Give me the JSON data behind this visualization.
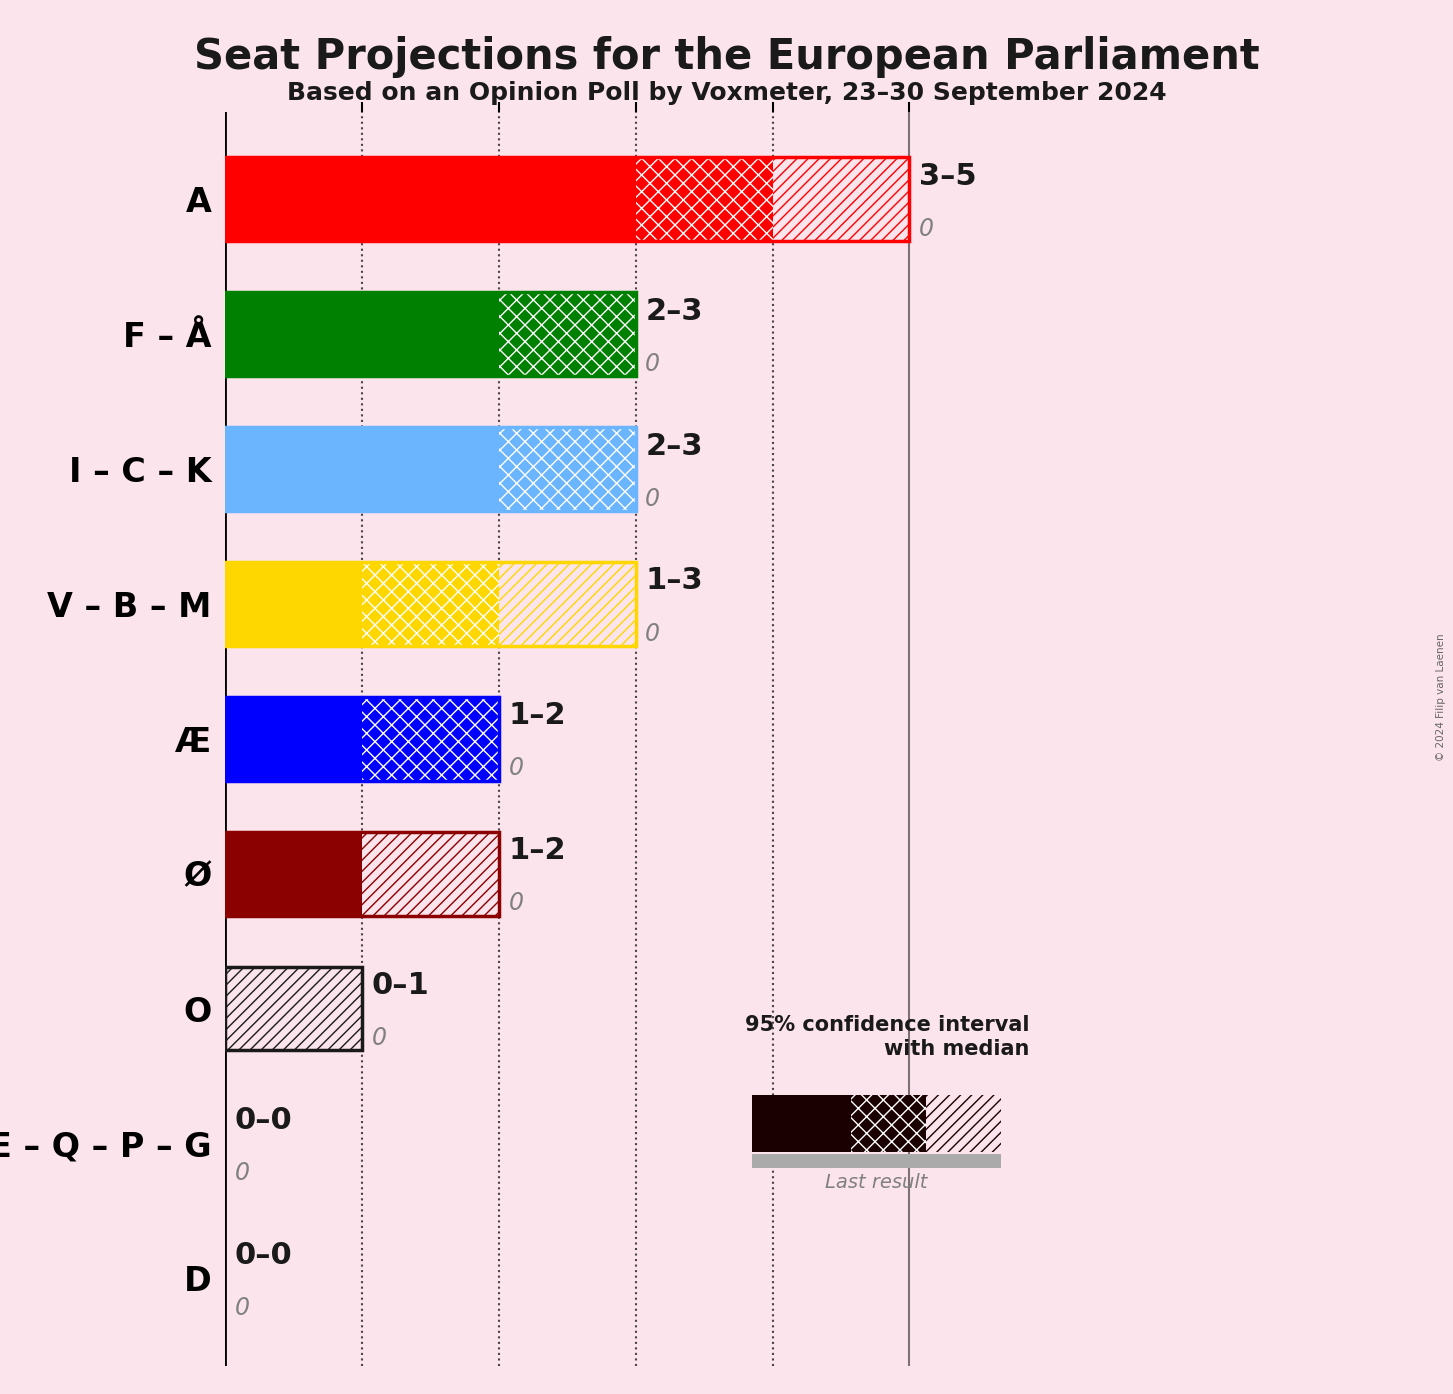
{
  "title": "Seat Projections for the European Parliament",
  "subtitle": "Based on an Opinion Poll by Voxmeter, 23–30 September 2024",
  "copyright": "© 2024 Filip van Laenen",
  "background_color": "#fce4ec",
  "bar_data": [
    {
      "name": "A",
      "color": "#FF0000",
      "solid": 3,
      "cross": 4,
      "slash": 5,
      "label": "3–5"
    },
    {
      "name": "F – Å",
      "color": "#008000",
      "solid": 2,
      "cross": 3,
      "slash": 3,
      "label": "2–3"
    },
    {
      "name": "I – C – K",
      "color": "#6BB5FF",
      "solid": 2,
      "cross": 3,
      "slash": 3,
      "label": "2–3"
    },
    {
      "name": "V – B – M",
      "color": "#FFD700",
      "solid": 1,
      "cross": 2,
      "slash": 3,
      "label": "1–3"
    },
    {
      "name": "Æ",
      "color": "#0000FF",
      "solid": 1,
      "cross": 2,
      "slash": 2,
      "label": "1–2"
    },
    {
      "name": "Ø",
      "color": "#8B0000",
      "solid": 1,
      "cross": 1,
      "slash": 2,
      "label": "1–2"
    },
    {
      "name": "O",
      "color": "#1a1a1a",
      "solid": 0,
      "cross": 0,
      "slash": 1,
      "label": "0–1"
    },
    {
      "name": "E – Q – P – G",
      "color": "#1a1a1a",
      "solid": 0,
      "cross": 0,
      "slash": 0,
      "label": "0–0"
    },
    {
      "name": "D",
      "color": "#1a1a1a",
      "solid": 0,
      "cross": 0,
      "slash": 0,
      "label": "0–0"
    }
  ],
  "xlim": [
    0,
    6
  ],
  "bar_height": 0.62,
  "title_fontsize": 30,
  "subtitle_fontsize": 18,
  "label_fontsize": 22,
  "sublabel_fontsize": 17,
  "party_fontsize": 24
}
